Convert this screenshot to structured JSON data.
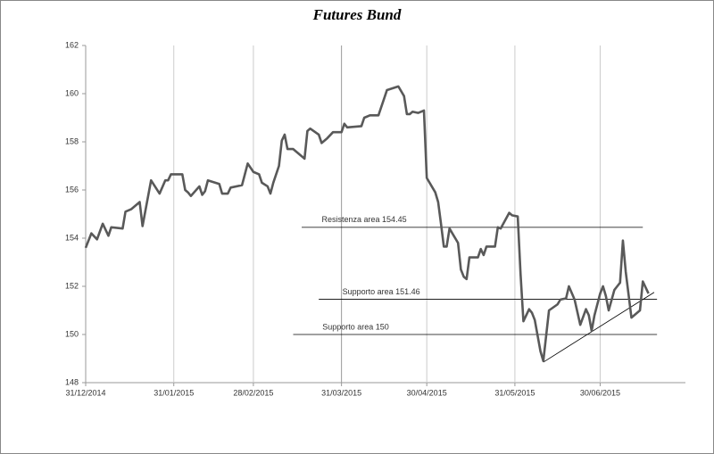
{
  "chart_data": {
    "type": "line",
    "title": "Futures Bund",
    "x": [
      "2014-12-31",
      "2015-01-02",
      "2015-01-04",
      "2015-01-06",
      "2015-01-08",
      "2015-01-09",
      "2015-01-13",
      "2015-01-14",
      "2015-01-16",
      "2015-01-19",
      "2015-01-20",
      "2015-01-23",
      "2015-01-26",
      "2015-01-28",
      "2015-01-29",
      "2015-01-30",
      "2015-02-03",
      "2015-02-04",
      "2015-02-05",
      "2015-02-06",
      "2015-02-09",
      "2015-02-10",
      "2015-02-11",
      "2015-02-12",
      "2015-02-16",
      "2015-02-17",
      "2015-02-19",
      "2015-02-20",
      "2015-02-24",
      "2015-02-26",
      "2015-02-28",
      "2015-03-02",
      "2015-03-03",
      "2015-03-05",
      "2015-03-06",
      "2015-03-07",
      "2015-03-09",
      "2015-03-10",
      "2015-03-11",
      "2015-03-12",
      "2015-03-14",
      "2015-03-18",
      "2015-03-19",
      "2015-03-20",
      "2015-03-23",
      "2015-03-24",
      "2015-03-26",
      "2015-03-28",
      "2015-03-31",
      "2015-04-01",
      "2015-04-02",
      "2015-04-07",
      "2015-04-08",
      "2015-04-10",
      "2015-04-13",
      "2015-04-15",
      "2015-04-16",
      "2015-04-20",
      "2015-04-22",
      "2015-04-23",
      "2015-04-24",
      "2015-04-25",
      "2015-04-27",
      "2015-04-29",
      "2015-04-30",
      "2015-05-03",
      "2015-05-04",
      "2015-05-05",
      "2015-05-06",
      "2015-05-07",
      "2015-05-08",
      "2015-05-11",
      "2015-05-12",
      "2015-05-13",
      "2015-05-14",
      "2015-05-15",
      "2015-05-18",
      "2015-05-19",
      "2015-05-20",
      "2015-05-21",
      "2015-05-24",
      "2015-05-25",
      "2015-05-26",
      "2015-05-29",
      "2015-05-30",
      "2015-06-01",
      "2015-06-02",
      "2015-06-03",
      "2015-06-05",
      "2015-06-06",
      "2015-06-07",
      "2015-06-09",
      "2015-06-10",
      "2015-06-12",
      "2015-06-15",
      "2015-06-16",
      "2015-06-18",
      "2015-06-19",
      "2015-06-21",
      "2015-06-23",
      "2015-06-25",
      "2015-06-26",
      "2015-06-27",
      "2015-06-28",
      "2015-06-30",
      "2015-07-01",
      "2015-07-02",
      "2015-07-03",
      "2015-07-05",
      "2015-07-06",
      "2015-07-07",
      "2015-07-08",
      "2015-07-09",
      "2015-07-11",
      "2015-07-14",
      "2015-07-15",
      "2015-07-17"
    ],
    "series": [
      {
        "color": "#595959",
        "values": [
          153.6,
          154.2,
          153.95,
          154.6,
          154.1,
          154.45,
          154.4,
          155.1,
          155.2,
          155.5,
          154.5,
          156.4,
          155.85,
          156.4,
          156.4,
          156.65,
          156.65,
          156.0,
          155.9,
          155.75,
          156.15,
          155.8,
          155.95,
          156.4,
          156.25,
          155.85,
          155.85,
          156.1,
          156.2,
          157.1,
          156.75,
          156.65,
          156.3,
          156.15,
          155.85,
          156.3,
          157.0,
          158.05,
          158.3,
          157.7,
          157.7,
          157.3,
          158.45,
          158.55,
          158.3,
          157.95,
          158.15,
          158.4,
          158.4,
          158.75,
          158.6,
          158.65,
          159.0,
          159.1,
          159.1,
          159.8,
          160.15,
          160.3,
          159.9,
          159.15,
          159.15,
          159.25,
          159.2,
          159.3,
          156.5,
          155.9,
          155.5,
          154.6,
          153.65,
          153.65,
          154.4,
          153.8,
          152.7,
          152.4,
          152.3,
          153.2,
          153.2,
          153.55,
          153.3,
          153.65,
          153.65,
          154.45,
          154.4,
          155.05,
          154.95,
          154.9,
          152.5,
          150.55,
          151.05,
          150.9,
          150.6,
          149.3,
          148.9,
          151.0,
          151.25,
          151.45,
          151.5,
          152.0,
          151.45,
          150.4,
          151.05,
          150.8,
          150.15,
          150.8,
          151.7,
          152.0,
          151.6,
          151.0,
          151.85,
          152.0,
          152.15,
          153.9,
          152.6,
          150.7,
          151.0,
          152.2,
          151.7
        ]
      }
    ],
    "xlim": [
      "2014-12-31",
      "2015-07-30"
    ],
    "xticks": [
      {
        "value": "2014-12-31",
        "label": "31/12/2014"
      },
      {
        "value": "2015-01-31",
        "label": "31/01/2015"
      },
      {
        "value": "2015-02-28",
        "label": "28/02/2015"
      },
      {
        "value": "2015-03-31",
        "label": "31/03/2015"
      },
      {
        "value": "2015-04-30",
        "label": "30/04/2015"
      },
      {
        "value": "2015-05-31",
        "label": "31/05/2015"
      },
      {
        "value": "2015-06-30",
        "label": "30/06/2015"
      }
    ],
    "ylim": [
      148,
      162
    ],
    "yticks": [
      148,
      150,
      152,
      154,
      156,
      158,
      160,
      162
    ],
    "grid": "x",
    "annotations": [
      {
        "text": "Resistenza area 154.45",
        "value": 154.45,
        "start": "2015-03-17",
        "end": "2015-07-15"
      },
      {
        "text": "Supporto area 151.46",
        "value": 151.46,
        "start": "2015-03-23",
        "end": "2015-07-20"
      },
      {
        "text": "Supporto area 150",
        "value": 150,
        "start": "2015-03-14",
        "end": "2015-07-20"
      }
    ],
    "trendline": {
      "x": [
        "2015-06-10",
        "2015-07-19"
      ],
      "y": [
        148.85,
        151.75
      ]
    }
  }
}
